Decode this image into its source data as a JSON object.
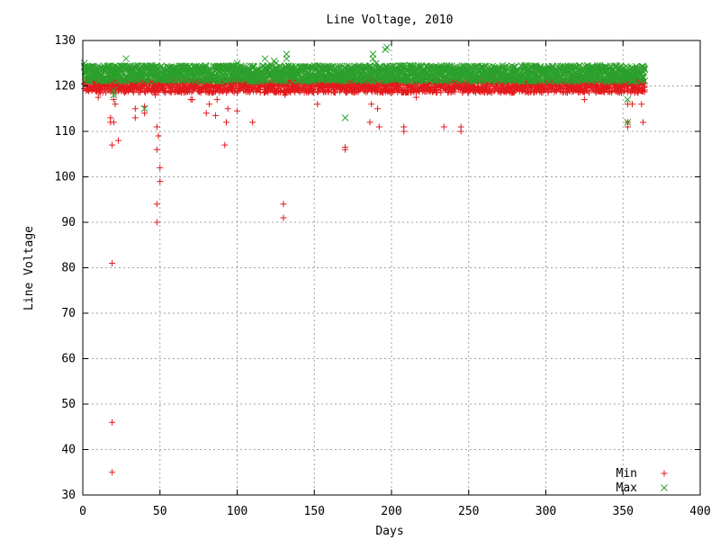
{
  "chart_data": {
    "type": "scatter",
    "title": "Line Voltage, 2010",
    "xlabel": "Days",
    "ylabel": "Line Voltage",
    "xlim": [
      0,
      400
    ],
    "ylim": [
      30,
      130
    ],
    "x_ticks": [
      0,
      50,
      100,
      150,
      200,
      250,
      300,
      350,
      400
    ],
    "y_ticks": [
      30,
      40,
      50,
      60,
      70,
      80,
      90,
      100,
      110,
      120,
      130
    ],
    "grid": true,
    "legend_position": "bottom-right",
    "series": [
      {
        "name": "Min",
        "marker": "+",
        "color": "#e31a1c",
        "band": {
          "x_start": 1,
          "x_end": 364,
          "y_low": 118.5,
          "y_high": 121.5
        },
        "points": [
          [
            10,
            117.5
          ],
          [
            18,
            112
          ],
          [
            18,
            113
          ],
          [
            19,
            107
          ],
          [
            19,
            81
          ],
          [
            19,
            46
          ],
          [
            19,
            35
          ],
          [
            20,
            117
          ],
          [
            20,
            112
          ],
          [
            21,
            116
          ],
          [
            23,
            108
          ],
          [
            34,
            113
          ],
          [
            34,
            115
          ],
          [
            40,
            114
          ],
          [
            40,
            115.5
          ],
          [
            47,
            118
          ],
          [
            48,
            111
          ],
          [
            48,
            106
          ],
          [
            48,
            94
          ],
          [
            48,
            90
          ],
          [
            49,
            109
          ],
          [
            50,
            102
          ],
          [
            50,
            99
          ],
          [
            70,
            117
          ],
          [
            71,
            117
          ],
          [
            80,
            114
          ],
          [
            82,
            116
          ],
          [
            86,
            113.5
          ],
          [
            87,
            117
          ],
          [
            92,
            107
          ],
          [
            93,
            112
          ],
          [
            94,
            115
          ],
          [
            100,
            114.5
          ],
          [
            110,
            112
          ],
          [
            130,
            94
          ],
          [
            130,
            91
          ],
          [
            131,
            118
          ],
          [
            152,
            116
          ],
          [
            170,
            106
          ],
          [
            170,
            106.5
          ],
          [
            186,
            112
          ],
          [
            187,
            116
          ],
          [
            191,
            115
          ],
          [
            192,
            111
          ],
          [
            208,
            110
          ],
          [
            208,
            111
          ],
          [
            216,
            117.5
          ],
          [
            234,
            111
          ],
          [
            245,
            110
          ],
          [
            245,
            111
          ],
          [
            325,
            117
          ],
          [
            353,
            111
          ],
          [
            353,
            112
          ],
          [
            353,
            116
          ],
          [
            356,
            116
          ],
          [
            362,
            116
          ],
          [
            363,
            112
          ]
        ]
      },
      {
        "name": "Max",
        "marker": "x",
        "color": "#2ca02c",
        "band": {
          "x_start": 1,
          "x_end": 364,
          "y_low": 121,
          "y_high": 124.5
        },
        "points": [
          [
            1,
            125
          ],
          [
            20,
            118
          ],
          [
            20,
            119
          ],
          [
            28,
            126
          ],
          [
            40,
            115
          ],
          [
            100,
            125
          ],
          [
            118,
            126
          ],
          [
            124,
            125.5
          ],
          [
            125,
            125
          ],
          [
            132,
            126
          ],
          [
            132,
            127
          ],
          [
            170,
            113
          ],
          [
            188,
            127
          ],
          [
            188,
            126
          ],
          [
            190,
            125
          ],
          [
            196,
            128
          ],
          [
            197,
            128.5
          ],
          [
            272,
            124.5
          ],
          [
            335,
            124.5
          ],
          [
            353,
            112
          ],
          [
            353,
            117
          ]
        ]
      }
    ]
  }
}
